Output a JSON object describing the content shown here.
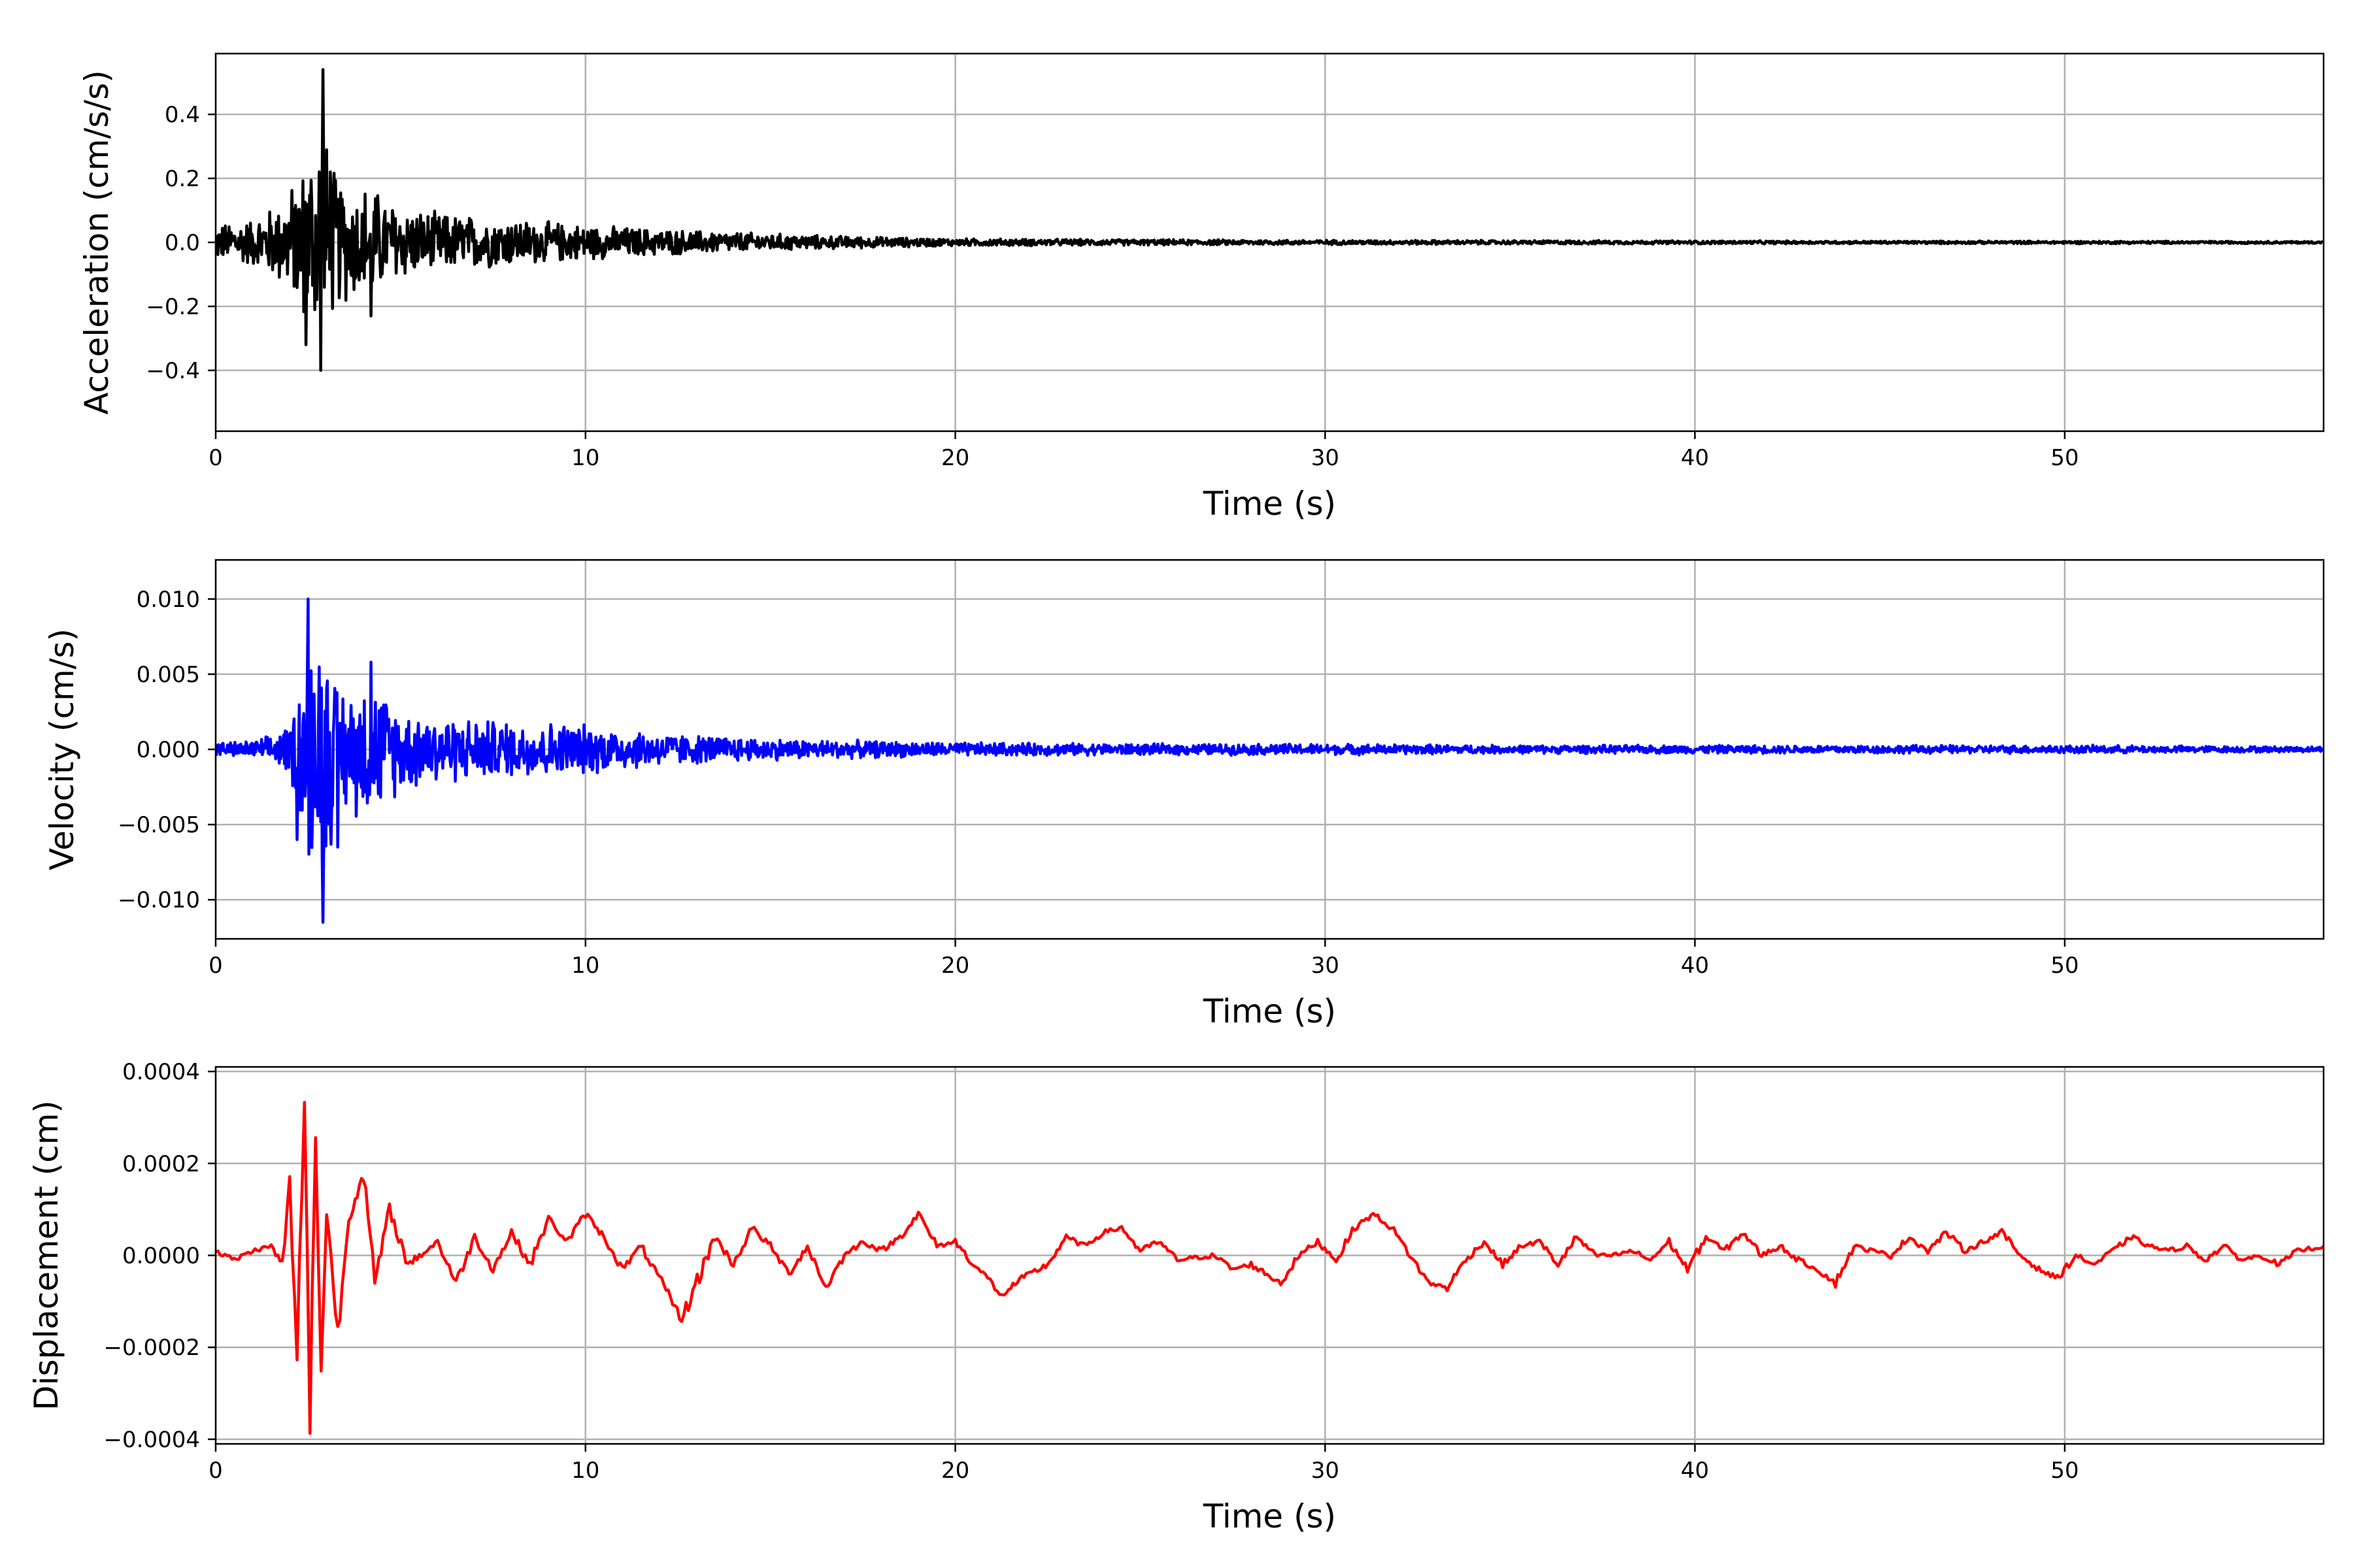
{
  "chart_data": [
    {
      "type": "line",
      "xlabel": "Time (s)",
      "ylabel": "Acceleration (cm/s/s)",
      "xlim": [
        0,
        57
      ],
      "ylim": [
        -0.59,
        0.59
      ],
      "xticks": [
        0,
        10,
        20,
        30,
        40,
        50
      ],
      "yticks": [
        -0.4,
        -0.2,
        0.0,
        0.2,
        0.4
      ],
      "ytick_labels": [
        "−0.4",
        "−0.2",
        "0.0",
        "0.2",
        "0.4"
      ],
      "grid": true,
      "series": [
        {
          "color": "#000000",
          "x": [
            0,
            0.5,
            1,
            1.5,
            1.8,
            2.1,
            2.3,
            2.5,
            2.7,
            2.85,
            2.95,
            3.1,
            3.3,
            3.6,
            3.9,
            4.2,
            4.5,
            5,
            5.5,
            6,
            7,
            8,
            9,
            10,
            12,
            14,
            16,
            18,
            20,
            25,
            30,
            35,
            40,
            45,
            50,
            57
          ],
          "y_envelope": [
            0.06,
            0.07,
            0.08,
            0.12,
            0.15,
            0.2,
            0.25,
            0.3,
            0.35,
            0.54,
            0.4,
            0.28,
            0.22,
            0.2,
            0.18,
            0.22,
            0.15,
            0.13,
            0.11,
            0.1,
            0.09,
            0.08,
            0.07,
            0.06,
            0.045,
            0.035,
            0.025,
            0.018,
            0.013,
            0.01,
            0.008,
            0.007,
            0.006,
            0.005,
            0.005,
            0.004
          ],
          "y_peaks": [
            [
              2.9,
              0.54
            ],
            [
              2.85,
              -0.4
            ],
            [
              2.45,
              -0.32
            ],
            [
              3.1,
              0.22
            ],
            [
              4.2,
              0.22
            ],
            [
              4.2,
              -0.23
            ]
          ]
        }
      ]
    },
    {
      "type": "line",
      "xlabel": "Time (s)",
      "ylabel": "Velocity (cm/s)",
      "xlim": [
        0,
        57
      ],
      "ylim": [
        -0.0126,
        0.0126
      ],
      "xticks": [
        0,
        10,
        20,
        30,
        40,
        50
      ],
      "yticks": [
        -0.01,
        -0.005,
        0.0,
        0.005,
        0.01
      ],
      "ytick_labels": [
        "−0.010",
        "−0.005",
        "0.000",
        "0.005",
        "0.010"
      ],
      "grid": true,
      "series": [
        {
          "color": "#0000ff",
          "x": [
            0,
            1,
            1.5,
            2,
            2.2,
            2.5,
            2.7,
            2.9,
            3.2,
            3.6,
            4.2,
            5,
            6,
            7,
            8,
            9,
            10,
            12,
            14,
            16,
            18,
            20,
            25,
            30,
            35,
            40,
            45,
            50,
            57
          ],
          "y_envelope": [
            0.0005,
            0.0006,
            0.001,
            0.0018,
            0.004,
            0.01,
            0.006,
            0.011,
            0.005,
            0.0045,
            0.005,
            0.003,
            0.0025,
            0.0022,
            0.002,
            0.002,
            0.0018,
            0.0012,
            0.0009,
            0.0007,
            0.0006,
            0.0005,
            0.0004,
            0.0004,
            0.0003,
            0.0003,
            0.0003,
            0.0003,
            0.0002
          ],
          "y_peaks": [
            [
              2.5,
              0.01
            ],
            [
              2.9,
              -0.0115
            ],
            [
              2.2,
              -0.006
            ],
            [
              4.2,
              0.0058
            ],
            [
              3.3,
              -0.0065
            ]
          ]
        }
      ]
    },
    {
      "type": "line",
      "xlabel": "Time (s)",
      "ylabel": "Displacement (cm)",
      "xlim": [
        0,
        57
      ],
      "ylim": [
        -0.00041,
        0.00041
      ],
      "xticks": [
        0,
        10,
        20,
        30,
        40,
        50
      ],
      "yticks": [
        -0.0004,
        -0.0002,
        0.0,
        0.0002,
        0.0004
      ],
      "ytick_labels": [
        "−0.0004",
        "−0.0002",
        "0.0000",
        "0.0002",
        "0.0004"
      ],
      "grid": true,
      "series": [
        {
          "color": "#ff0000",
          "x": [
            0,
            0.5,
            1,
            1.5,
            1.8,
            2.0,
            2.2,
            2.4,
            2.55,
            2.7,
            2.85,
            3.0,
            3.3,
            3.6,
            4.0,
            4.3,
            4.7,
            5.2,
            6.0,
            6.5,
            7.0,
            7.5,
            8.0,
            8.5,
            9.0,
            9.5,
            10.0,
            10.5,
            11.0,
            11.5,
            12.0,
            12.6,
            13.5,
            14.0,
            14.5,
            15.0,
            15.5,
            16.0,
            16.5,
            17.0,
            17.5,
            18.0,
            18.5,
            19.0,
            19.5,
            20.0,
            20.5,
            21.0,
            21.2,
            21.8,
            22.5,
            23.0,
            23.5,
            24.0,
            24.5,
            25.0,
            25.5,
            26.0,
            27.0,
            27.5,
            28.0,
            28.8,
            29.3,
            29.8,
            30.3,
            30.8,
            31.3,
            31.8,
            32.3,
            32.8,
            33.3,
            33.8,
            34.3,
            34.8,
            35.3,
            35.8,
            36.3,
            36.8,
            37.3,
            37.8,
            38.3,
            38.8,
            39.3,
            39.8,
            40.3,
            40.8,
            41.3,
            41.8,
            42.3,
            42.8,
            43.3,
            43.8,
            44.3,
            44.8,
            45.3,
            45.8,
            46.3,
            46.8,
            47.3,
            47.8,
            48.3,
            48.8,
            49.3,
            49.8,
            50.3,
            50.8,
            51.3,
            51.8,
            52.3,
            52.8,
            53.3,
            53.8,
            54.3,
            54.8,
            55.3,
            55.8,
            56.3,
            57.0
          ],
          "y": [
            1e-05,
            -1e-05,
            1e-05,
            2e-05,
            -2e-05,
            0.00015,
            -0.00024,
            0.00036,
            -0.00038,
            0.00029,
            -0.00026,
            0.0001,
            -0.00017,
            8e-05,
            0.00018,
            -6e-05,
            0.0001,
            -2e-05,
            3e-05,
            -6e-05,
            4e-05,
            -3e-05,
            5e-05,
            -2e-05,
            8e-05,
            3e-05,
            9e-05,
            4e-05,
            -3e-05,
            2e-05,
            -5e-05,
            -0.00014,
            4e-05,
            -2e-05,
            6e-05,
            2e-05,
            -4e-05,
            2e-05,
            -7e-05,
            0.0,
            3e-05,
            1e-05,
            4e-05,
            9e-05,
            2e-05,
            3e-05,
            -2e-05,
            -6e-05,
            -9e-05,
            -5e-05,
            -2e-05,
            4e-05,
            2e-05,
            5e-05,
            6e-05,
            1e-05,
            3e-05,
            -1e-05,
            0.0,
            -3e-05,
            -2e-05,
            -6e-05,
            0.0,
            3e-05,
            -1e-05,
            6e-05,
            9e-05,
            6e-05,
            0.0,
            -6e-05,
            -7e-05,
            -1e-05,
            3e-05,
            -2e-05,
            2e-05,
            3e-05,
            -2e-05,
            4e-05,
            0.0,
            0.0,
            1e-05,
            -1e-05,
            3e-05,
            -3e-05,
            4e-05,
            1e-05,
            5e-05,
            0.0,
            2e-05,
            -1e-05,
            -3e-05,
            -6e-05,
            2e-05,
            1e-05,
            0.0,
            4e-05,
            1e-05,
            5e-05,
            1e-05,
            3e-05,
            5e-05,
            0.0,
            -3e-05,
            -5e-05,
            0.0,
            -2e-05,
            1e-05,
            4e-05,
            2e-05,
            1e-05,
            2e-05,
            -1e-05,
            2e-05,
            -1e-05,
            0.0,
            -2e-05,
            1e-05,
            2e-05
          ]
        }
      ]
    }
  ]
}
